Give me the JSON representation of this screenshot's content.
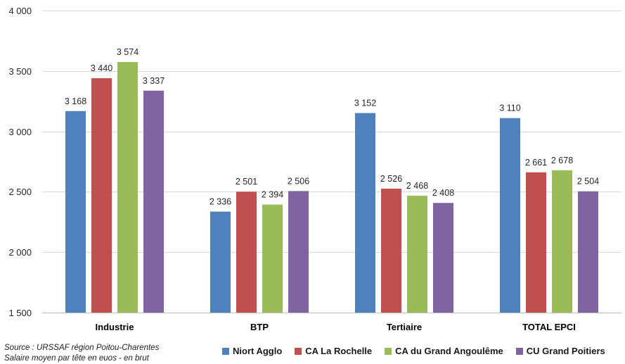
{
  "chart_data": {
    "type": "bar",
    "categories": [
      "Industrie",
      "BTP",
      "Tertiaire",
      "TOTAL EPCI"
    ],
    "series": [
      {
        "name": "Niort Agglo",
        "color": "#4f81bd",
        "values": [
          3168,
          2336,
          3152,
          3110
        ],
        "labels": [
          "3 168",
          "2 336",
          "3 152",
          "3 110"
        ]
      },
      {
        "name": "CA La Rochelle",
        "color": "#c0504d",
        "values": [
          3440,
          2501,
          2526,
          2661
        ],
        "labels": [
          "3 440",
          "2 501",
          "2 526",
          "2 661"
        ]
      },
      {
        "name": "CA du Grand Angoulême",
        "color": "#9bbb59",
        "values": [
          3574,
          2394,
          2468,
          2678
        ],
        "labels": [
          "3 574",
          "2 394",
          "2 468",
          "2 678"
        ]
      },
      {
        "name": "CU Grand Poitiers",
        "color": "#8064a2",
        "values": [
          3337,
          2506,
          2408,
          2504
        ],
        "labels": [
          "3 337",
          "2 506",
          "2 408",
          "2 504"
        ]
      }
    ],
    "ylim": [
      1500,
      4000
    ],
    "yticks": [
      1500,
      2000,
      2500,
      3000,
      3500,
      4000
    ],
    "ytick_labels": [
      "1 500",
      "2 000",
      "2 500",
      "3 000",
      "3 500",
      "4 000"
    ],
    "grid": true,
    "legend": "bottom-right"
  },
  "source": {
    "line1": "Source : URSSAF région Poitou-Charentes",
    "line2": "Salaire moyen par tête  en euos - en brut"
  }
}
